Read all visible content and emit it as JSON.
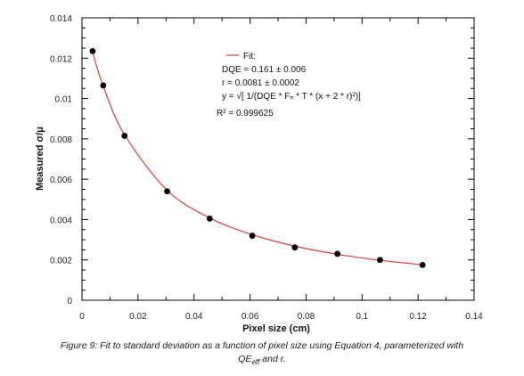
{
  "chart_data": {
    "type": "scatter",
    "xlabel": "Pixel size (cm)",
    "ylabel": "Measured σ/μ",
    "xlim": [
      0,
      0.14
    ],
    "ylim": [
      0,
      0.014
    ],
    "x_ticks": [
      "0",
      "0.02",
      "0.04",
      "0.06",
      "0.08",
      "0.1",
      "0.12",
      "0.14"
    ],
    "y_ticks": [
      "0",
      "0.002",
      "0.004",
      "0.006",
      "0.008",
      "0.01",
      "0.012",
      "0.014"
    ],
    "grid": false,
    "legend_position": "top-right",
    "series": [
      {
        "type": "scatter",
        "color": "#000000",
        "x": [
          0.0038,
          0.0076,
          0.0152,
          0.0304,
          0.0456,
          0.0608,
          0.076,
          0.0912,
          0.1064,
          0.1216
        ],
        "y": [
          0.01235,
          0.01065,
          0.00815,
          0.0054,
          0.00405,
          0.0032,
          0.00262,
          0.0023,
          0.002,
          0.00175
        ]
      },
      {
        "type": "line",
        "name": "Fit:",
        "color": "#d44a4a",
        "x": [
          0.0038,
          0.0076,
          0.0152,
          0.0304,
          0.0456,
          0.0608,
          0.076,
          0.0912,
          0.1064,
          0.1216
        ],
        "y": [
          0.0123,
          0.0106,
          0.0082,
          0.00545,
          0.00408,
          0.00325,
          0.00268,
          0.00228,
          0.00198,
          0.00176
        ]
      }
    ],
    "annotations": [
      "DQE = 0.161 ± 0.006",
      "r = 0.0081 ± 0.0002",
      "y = √[ 1/(DQE * Fₙ * T * (x + 2 * r)²)]",
      "R² = 0.999625"
    ]
  },
  "caption": {
    "line1": "Figure 9: Fit to standard deviation as a function of pixel size using Equation 4, parameterized with",
    "line2_main": "QE",
    "line2_sub": "eff",
    "line2_rest": " and r."
  }
}
